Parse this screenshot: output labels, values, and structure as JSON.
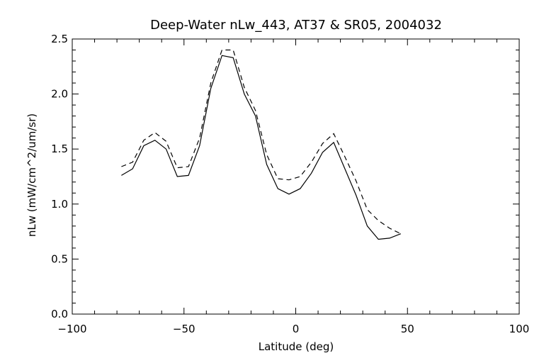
{
  "chart_data": {
    "type": "line",
    "title": "Deep-Water nLw_443, AT37 & SR05, 2004032",
    "xlabel": "Latitude (deg)",
    "ylabel": "nLw (mW/cm^2/um/sr)",
    "xlim": [
      -100,
      100
    ],
    "ylim": [
      0,
      2.5
    ],
    "x_ticks": [
      -100,
      -50,
      0,
      50,
      100
    ],
    "x_tick_labels": [
      "−100",
      "−50",
      "0",
      "50",
      "100"
    ],
    "y_ticks": [
      0,
      0.5,
      1,
      1.5,
      2,
      2.5
    ],
    "y_tick_labels": [
      "0.0",
      "0.5",
      "1.0",
      "1.5",
      "2.0",
      "2.5"
    ],
    "grid": false,
    "legend": "none",
    "series": [
      {
        "line_style": "solid",
        "color": "#000000",
        "x": [
          -78,
          -73,
          -68,
          -63,
          -58,
          -53,
          -48,
          -43,
          -38,
          -33,
          -28,
          -23,
          -18,
          -13,
          -8,
          -3,
          2,
          7,
          12,
          17,
          22,
          27,
          32,
          37,
          42,
          47
        ],
        "y": [
          1.26,
          1.32,
          1.53,
          1.58,
          1.5,
          1.25,
          1.26,
          1.53,
          2.05,
          2.35,
          2.33,
          2.0,
          1.8,
          1.36,
          1.14,
          1.09,
          1.14,
          1.28,
          1.47,
          1.56,
          1.32,
          1.08,
          0.8,
          0.68,
          0.69,
          0.73
        ]
      },
      {
        "line_style": "dashed",
        "color": "#000000",
        "x": [
          -78,
          -73,
          -68,
          -63,
          -58,
          -53,
          -48,
          -43,
          -38,
          -33,
          -28,
          -23,
          -18,
          -13,
          -8,
          -3,
          2,
          7,
          12,
          17,
          22,
          27,
          32,
          37,
          42,
          47
        ],
        "y": [
          1.34,
          1.38,
          1.58,
          1.65,
          1.57,
          1.33,
          1.34,
          1.6,
          2.1,
          2.4,
          2.4,
          2.06,
          1.85,
          1.45,
          1.23,
          1.22,
          1.25,
          1.38,
          1.55,
          1.64,
          1.43,
          1.21,
          0.95,
          0.85,
          0.78,
          0.73
        ]
      }
    ]
  }
}
